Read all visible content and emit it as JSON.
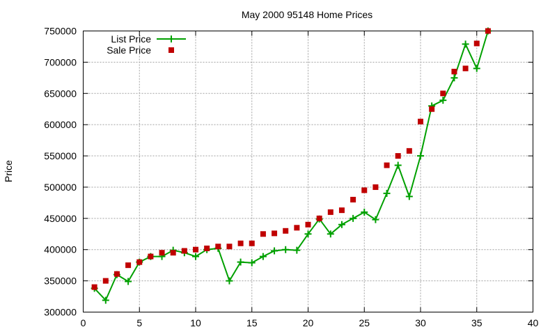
{
  "chart_data": {
    "type": "line",
    "title": "May 2000 95148 Home Prices",
    "xlabel": "",
    "ylabel": "Price",
    "xlim": [
      0,
      40
    ],
    "ylim": [
      300000,
      750000
    ],
    "xticks": [
      "0",
      "5",
      "10",
      "15",
      "20",
      "25",
      "30",
      "35",
      "40"
    ],
    "yticks": [
      "300000",
      "350000",
      "400000",
      "450000",
      "500000",
      "550000",
      "600000",
      "650000",
      "700000",
      "750000"
    ],
    "grid": true,
    "legend_position": "top-left",
    "series": [
      {
        "name": "List Price",
        "style": "line-plus",
        "color": "#00a000",
        "points": [
          [
            1,
            338000
          ],
          [
            2,
            319000
          ],
          [
            3,
            360000
          ],
          [
            4,
            349000
          ],
          [
            5,
            380000
          ],
          [
            6,
            389000
          ],
          [
            7,
            389000
          ],
          [
            8,
            399000
          ],
          [
            9,
            395000
          ],
          [
            10,
            389000
          ],
          [
            11,
            400000
          ],
          [
            12,
            402000
          ],
          [
            13,
            350000
          ],
          [
            14,
            380000
          ],
          [
            15,
            379000
          ],
          [
            16,
            389000
          ],
          [
            17,
            398000
          ],
          [
            18,
            400000
          ],
          [
            19,
            399000
          ],
          [
            20,
            425000
          ],
          [
            21,
            449000
          ],
          [
            22,
            425000
          ],
          [
            23,
            440000
          ],
          [
            24,
            450000
          ],
          [
            25,
            460000
          ],
          [
            26,
            448000
          ],
          [
            27,
            490000
          ],
          [
            28,
            535000
          ],
          [
            29,
            485000
          ],
          [
            30,
            550000
          ],
          [
            31,
            630000
          ],
          [
            32,
            639000
          ],
          [
            33,
            675000
          ],
          [
            34,
            729000
          ],
          [
            35,
            690000
          ],
          [
            36,
            750000
          ]
        ]
      },
      {
        "name": "Sale Price",
        "style": "square-points",
        "color": "#c00000",
        "points": [
          [
            1,
            340000
          ],
          [
            2,
            350000
          ],
          [
            3,
            361000
          ],
          [
            4,
            375000
          ],
          [
            5,
            380000
          ],
          [
            6,
            389000
          ],
          [
            7,
            395000
          ],
          [
            8,
            395000
          ],
          [
            9,
            398000
          ],
          [
            10,
            400000
          ],
          [
            11,
            402000
          ],
          [
            12,
            405000
          ],
          [
            13,
            405000
          ],
          [
            14,
            410000
          ],
          [
            15,
            410000
          ],
          [
            16,
            425000
          ],
          [
            17,
            426000
          ],
          [
            18,
            430000
          ],
          [
            19,
            435000
          ],
          [
            20,
            440000
          ],
          [
            21,
            450000
          ],
          [
            22,
            460000
          ],
          [
            23,
            463000
          ],
          [
            24,
            480000
          ],
          [
            25,
            495000
          ],
          [
            26,
            500000
          ],
          [
            27,
            535000
          ],
          [
            28,
            550000
          ],
          [
            29,
            558000
          ],
          [
            30,
            605000
          ],
          [
            31,
            625000
          ],
          [
            32,
            650000
          ],
          [
            33,
            685000
          ],
          [
            34,
            690000
          ],
          [
            35,
            730000
          ],
          [
            36,
            750000
          ]
        ]
      }
    ]
  }
}
